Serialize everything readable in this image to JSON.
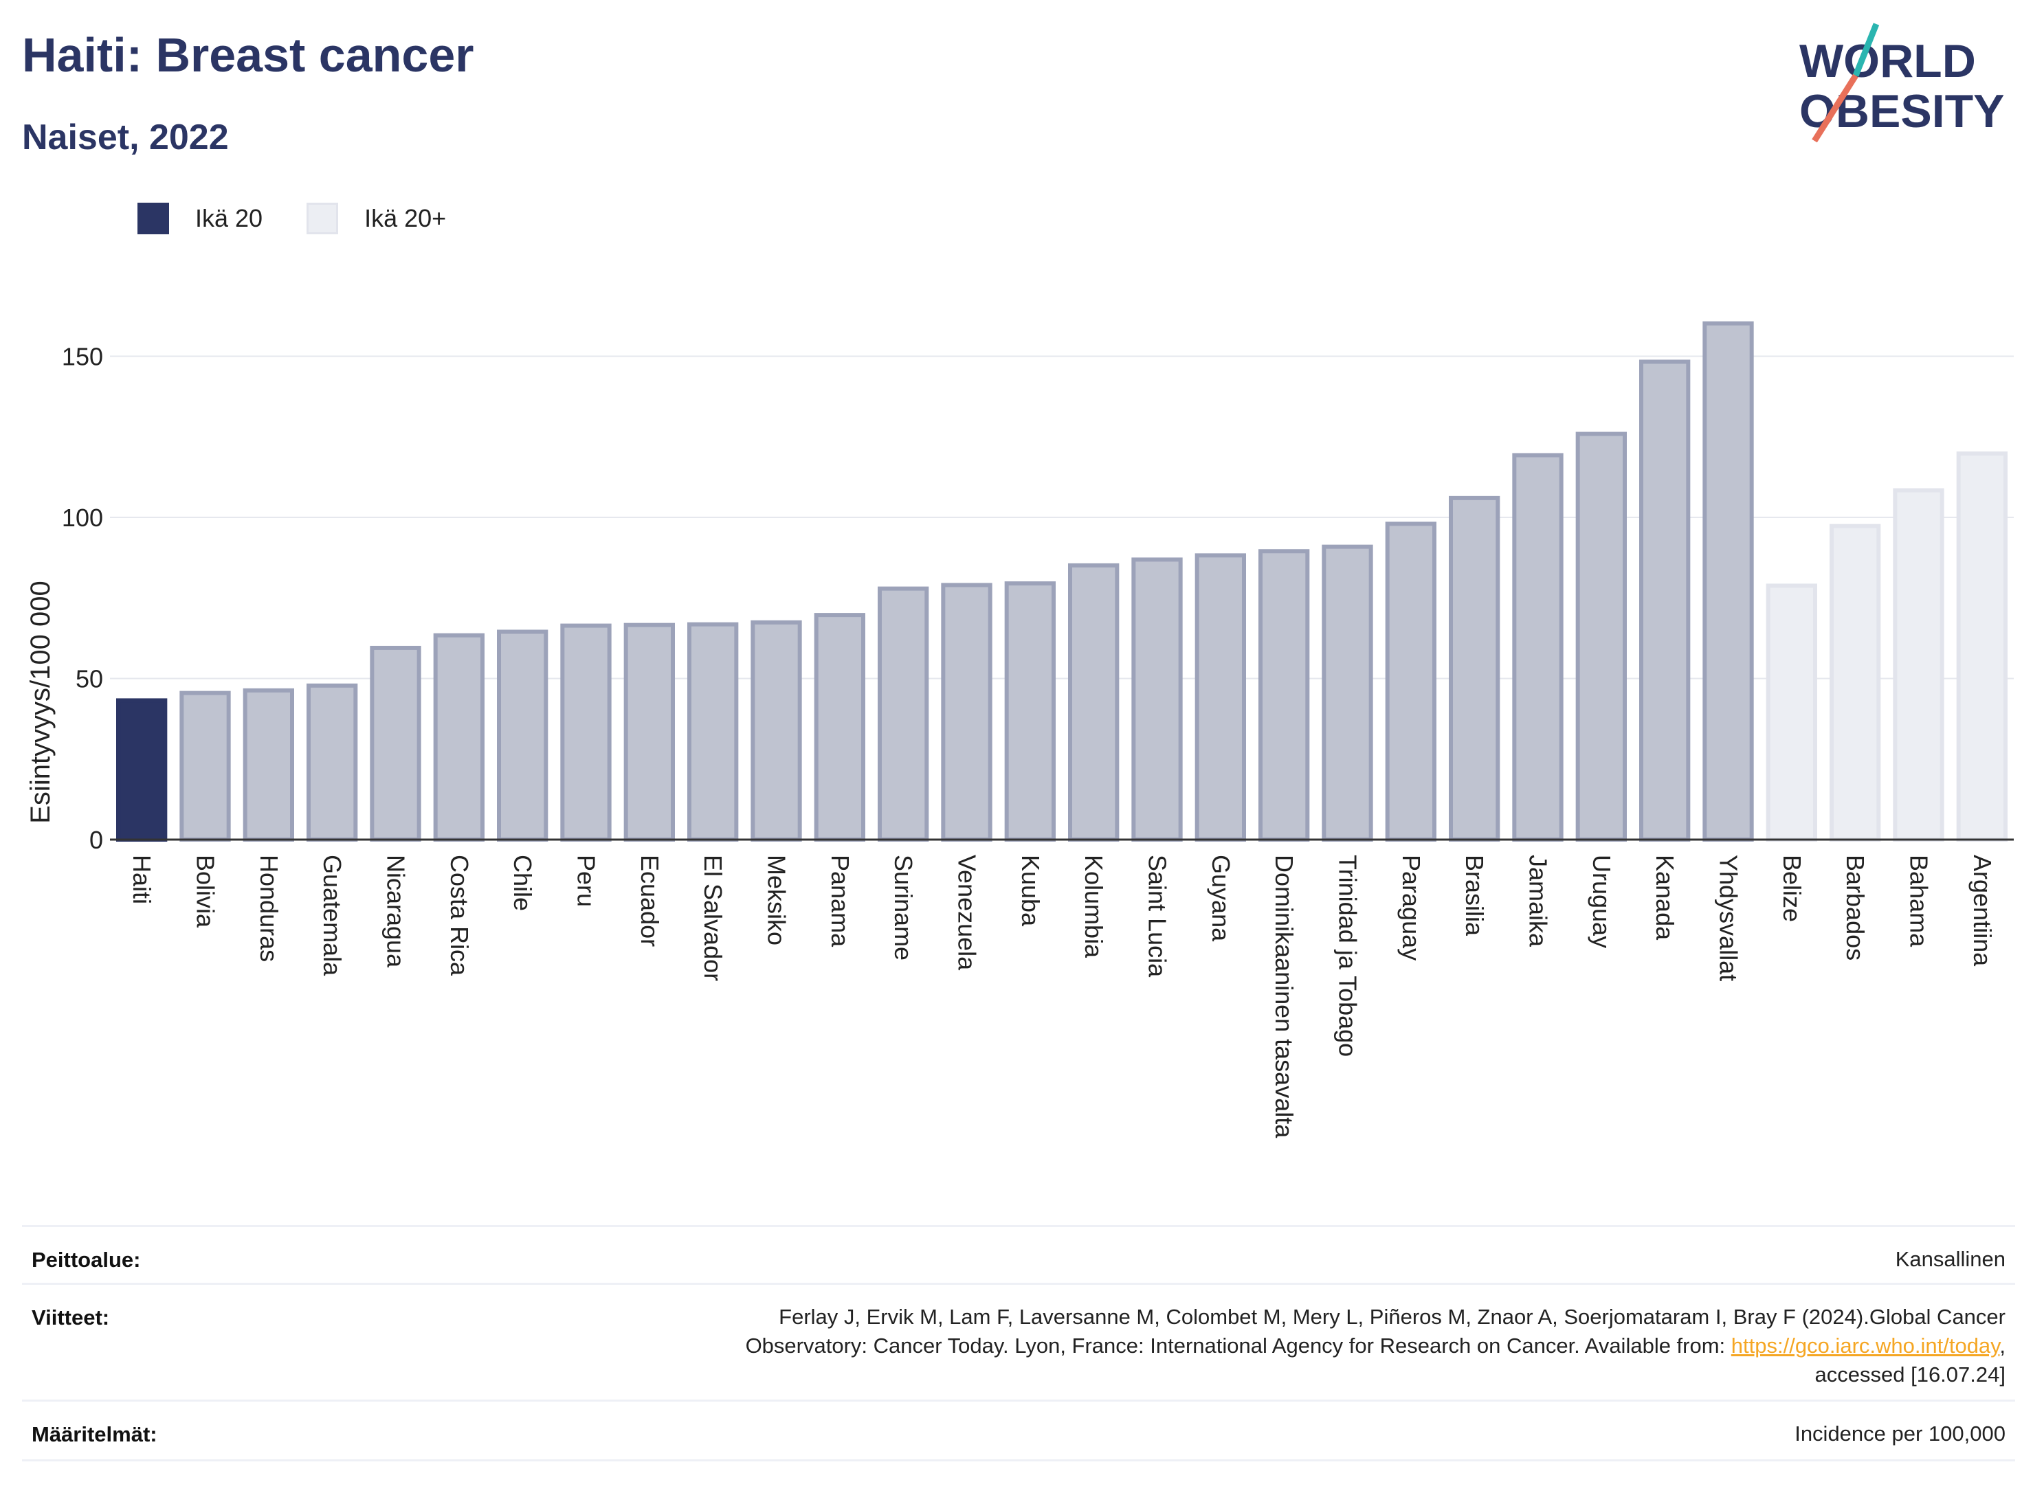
{
  "header": {
    "title": "Haiti: Breast cancer",
    "subtitle": "Naiset, 2022",
    "logo_line1": "WORLD",
    "logo_line2": "OBESITY"
  },
  "legend": {
    "items": [
      {
        "label": "Ikä 20",
        "color": "#2b3564"
      },
      {
        "label": "Ikä 20+",
        "color": "#eceef3"
      }
    ]
  },
  "chart_data": {
    "type": "bar",
    "title": "",
    "xlabel": "",
    "ylabel": "Esiintyvyys/100 000",
    "ylim": [
      0,
      170
    ],
    "yticks": [
      0,
      50,
      100,
      150
    ],
    "grid": true,
    "legend_position": "top-left",
    "categories": [
      "Haiti",
      "Bolivia",
      "Honduras",
      "Guatemala",
      "Nicaragua",
      "Costa Rica",
      "Chile",
      "Peru",
      "Ecuador",
      "El Salvador",
      "Meksiko",
      "Panama",
      "Suriname",
      "Venezuela",
      "Kuuba",
      "Kolumbia",
      "Saint Lucia",
      "Guyana",
      "Dominikaaninen tasavalta",
      "Trinidad ja Tobago",
      "Paraguay",
      "Brasilia",
      "Jamaika",
      "Uruguay",
      "Kanada",
      "Yhdysvallat",
      "Belize",
      "Barbados",
      "Bahama",
      "Argentiina"
    ],
    "values": [
      43.2,
      45.5,
      46.3,
      47.8,
      59.5,
      63.4,
      64.5,
      66.4,
      66.6,
      66.8,
      67.4,
      69.7,
      77.9,
      79.0,
      79.5,
      85.1,
      86.9,
      88.2,
      89.5,
      90.9,
      98.0,
      106.0,
      119.3,
      125.9,
      148.3,
      160.2,
      78.8,
      97.3,
      108.4,
      119.8
    ],
    "groups": [
      "Ikä 20",
      "Ikä 20+",
      "Ikä 20+",
      "Ikä 20+",
      "Ikä 20+",
      "Ikä 20+",
      "Ikä 20+",
      "Ikä 20+",
      "Ikä 20+",
      "Ikä 20+",
      "Ikä 20+",
      "Ikä 20+",
      "Ikä 20+",
      "Ikä 20+",
      "Ikä 20+",
      "Ikä 20+",
      "Ikä 20+",
      "Ikä 20+",
      "Ikä 20+",
      "Ikä 20+",
      "Ikä 20+",
      "Ikä 20+",
      "Ikä 20+",
      "Ikä 20+",
      "Ikä 20+",
      "Ikä 20+",
      "Ikä 20+",
      "Ikä 20+",
      "Ikä 20+",
      "Ikä 20+"
    ],
    "styles": [
      "highlight",
      "mid",
      "mid",
      "mid",
      "mid",
      "mid",
      "mid",
      "mid",
      "mid",
      "mid",
      "mid",
      "mid",
      "mid",
      "mid",
      "mid",
      "mid",
      "mid",
      "mid",
      "mid",
      "mid",
      "mid",
      "mid",
      "mid",
      "mid",
      "mid",
      "mid",
      "light",
      "light",
      "light",
      "light"
    ],
    "colors": {
      "highlight": "#2b3564",
      "mid_fill": "#bfc3d0",
      "mid_stroke": "#9ca2b9",
      "light_fill": "#eceef3",
      "light_stroke": "#e2e4ec",
      "grid": "#e6e8ee",
      "axis": "#333333"
    }
  },
  "meta": {
    "coverage_label": "Peittoalue:",
    "coverage_value": "Kansallinen",
    "references_label": "Viitteet:",
    "references_line1": "Ferlay J, Ervik M, Lam F, Laversanne M, Colombet M, Mery L, Piñeros M, Znaor A, Soerjomataram I, Bray F (2024).Global Cancer",
    "references_line2_pre": "Observatory: Cancer Today. Lyon, France: International Agency for Research on Cancer. Available from: ",
    "references_link": "https://gco.iarc.who.int/today",
    "references_line2_post": ",",
    "references_line3": "accessed [16.07.24]",
    "definitions_label": "Määritelmät:",
    "definitions_value": "Incidence per 100,000"
  }
}
